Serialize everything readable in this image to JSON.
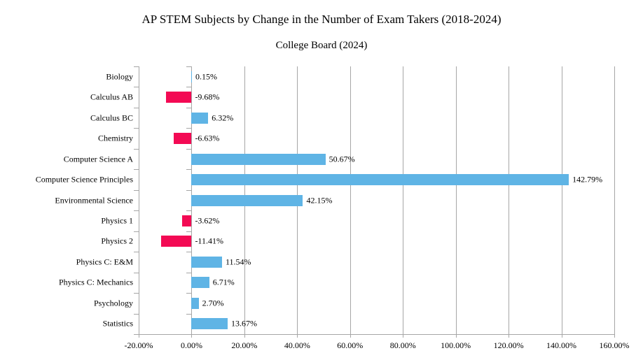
{
  "chart_data": {
    "type": "bar",
    "orientation": "horizontal",
    "title": "AP STEM Subjects by Change in the Number of Exam Takers (2018-2024)",
    "subtitle": "College Board (2024)",
    "categories": [
      "Biology",
      "Calculus AB",
      "Calculus BC",
      "Chemistry",
      "Computer Science A",
      "Computer Science Principles",
      "Environmental Science",
      "Physics 1",
      "Physics 2",
      "Physics C: E&M",
      "Physics C: Mechanics",
      "Psychology",
      "Statistics"
    ],
    "values": [
      0.15,
      -9.68,
      6.32,
      -6.63,
      50.67,
      142.79,
      42.15,
      -3.62,
      -11.41,
      11.54,
      6.71,
      2.7,
      13.67
    ],
    "data_labels": [
      "0.15%",
      "-9.68%",
      "6.32%",
      "-6.63%",
      "50.67%",
      "142.79%",
      "42.15%",
      "-3.62%",
      "-11.41%",
      "11.54%",
      "6.71%",
      "2.70%",
      "13.67%"
    ],
    "xlim": [
      -20,
      160
    ],
    "x_ticks": [
      -20,
      0,
      20,
      40,
      60,
      80,
      100,
      120,
      140,
      160
    ],
    "x_tick_labels": [
      "-20.00%",
      "0.00%",
      "20.00%",
      "40.00%",
      "60.00%",
      "80.00%",
      "100.00%",
      "120.00%",
      "140.00%",
      "160.00%"
    ],
    "grid": true,
    "legend": false,
    "colors": {
      "positive_bar": "#5FB4E5",
      "negative_bar": "#F30A54",
      "gridline": "#A6A6A6",
      "axis_line": "#A6A6A6",
      "text": "#000000",
      "background": "#FFFFFF"
    }
  }
}
